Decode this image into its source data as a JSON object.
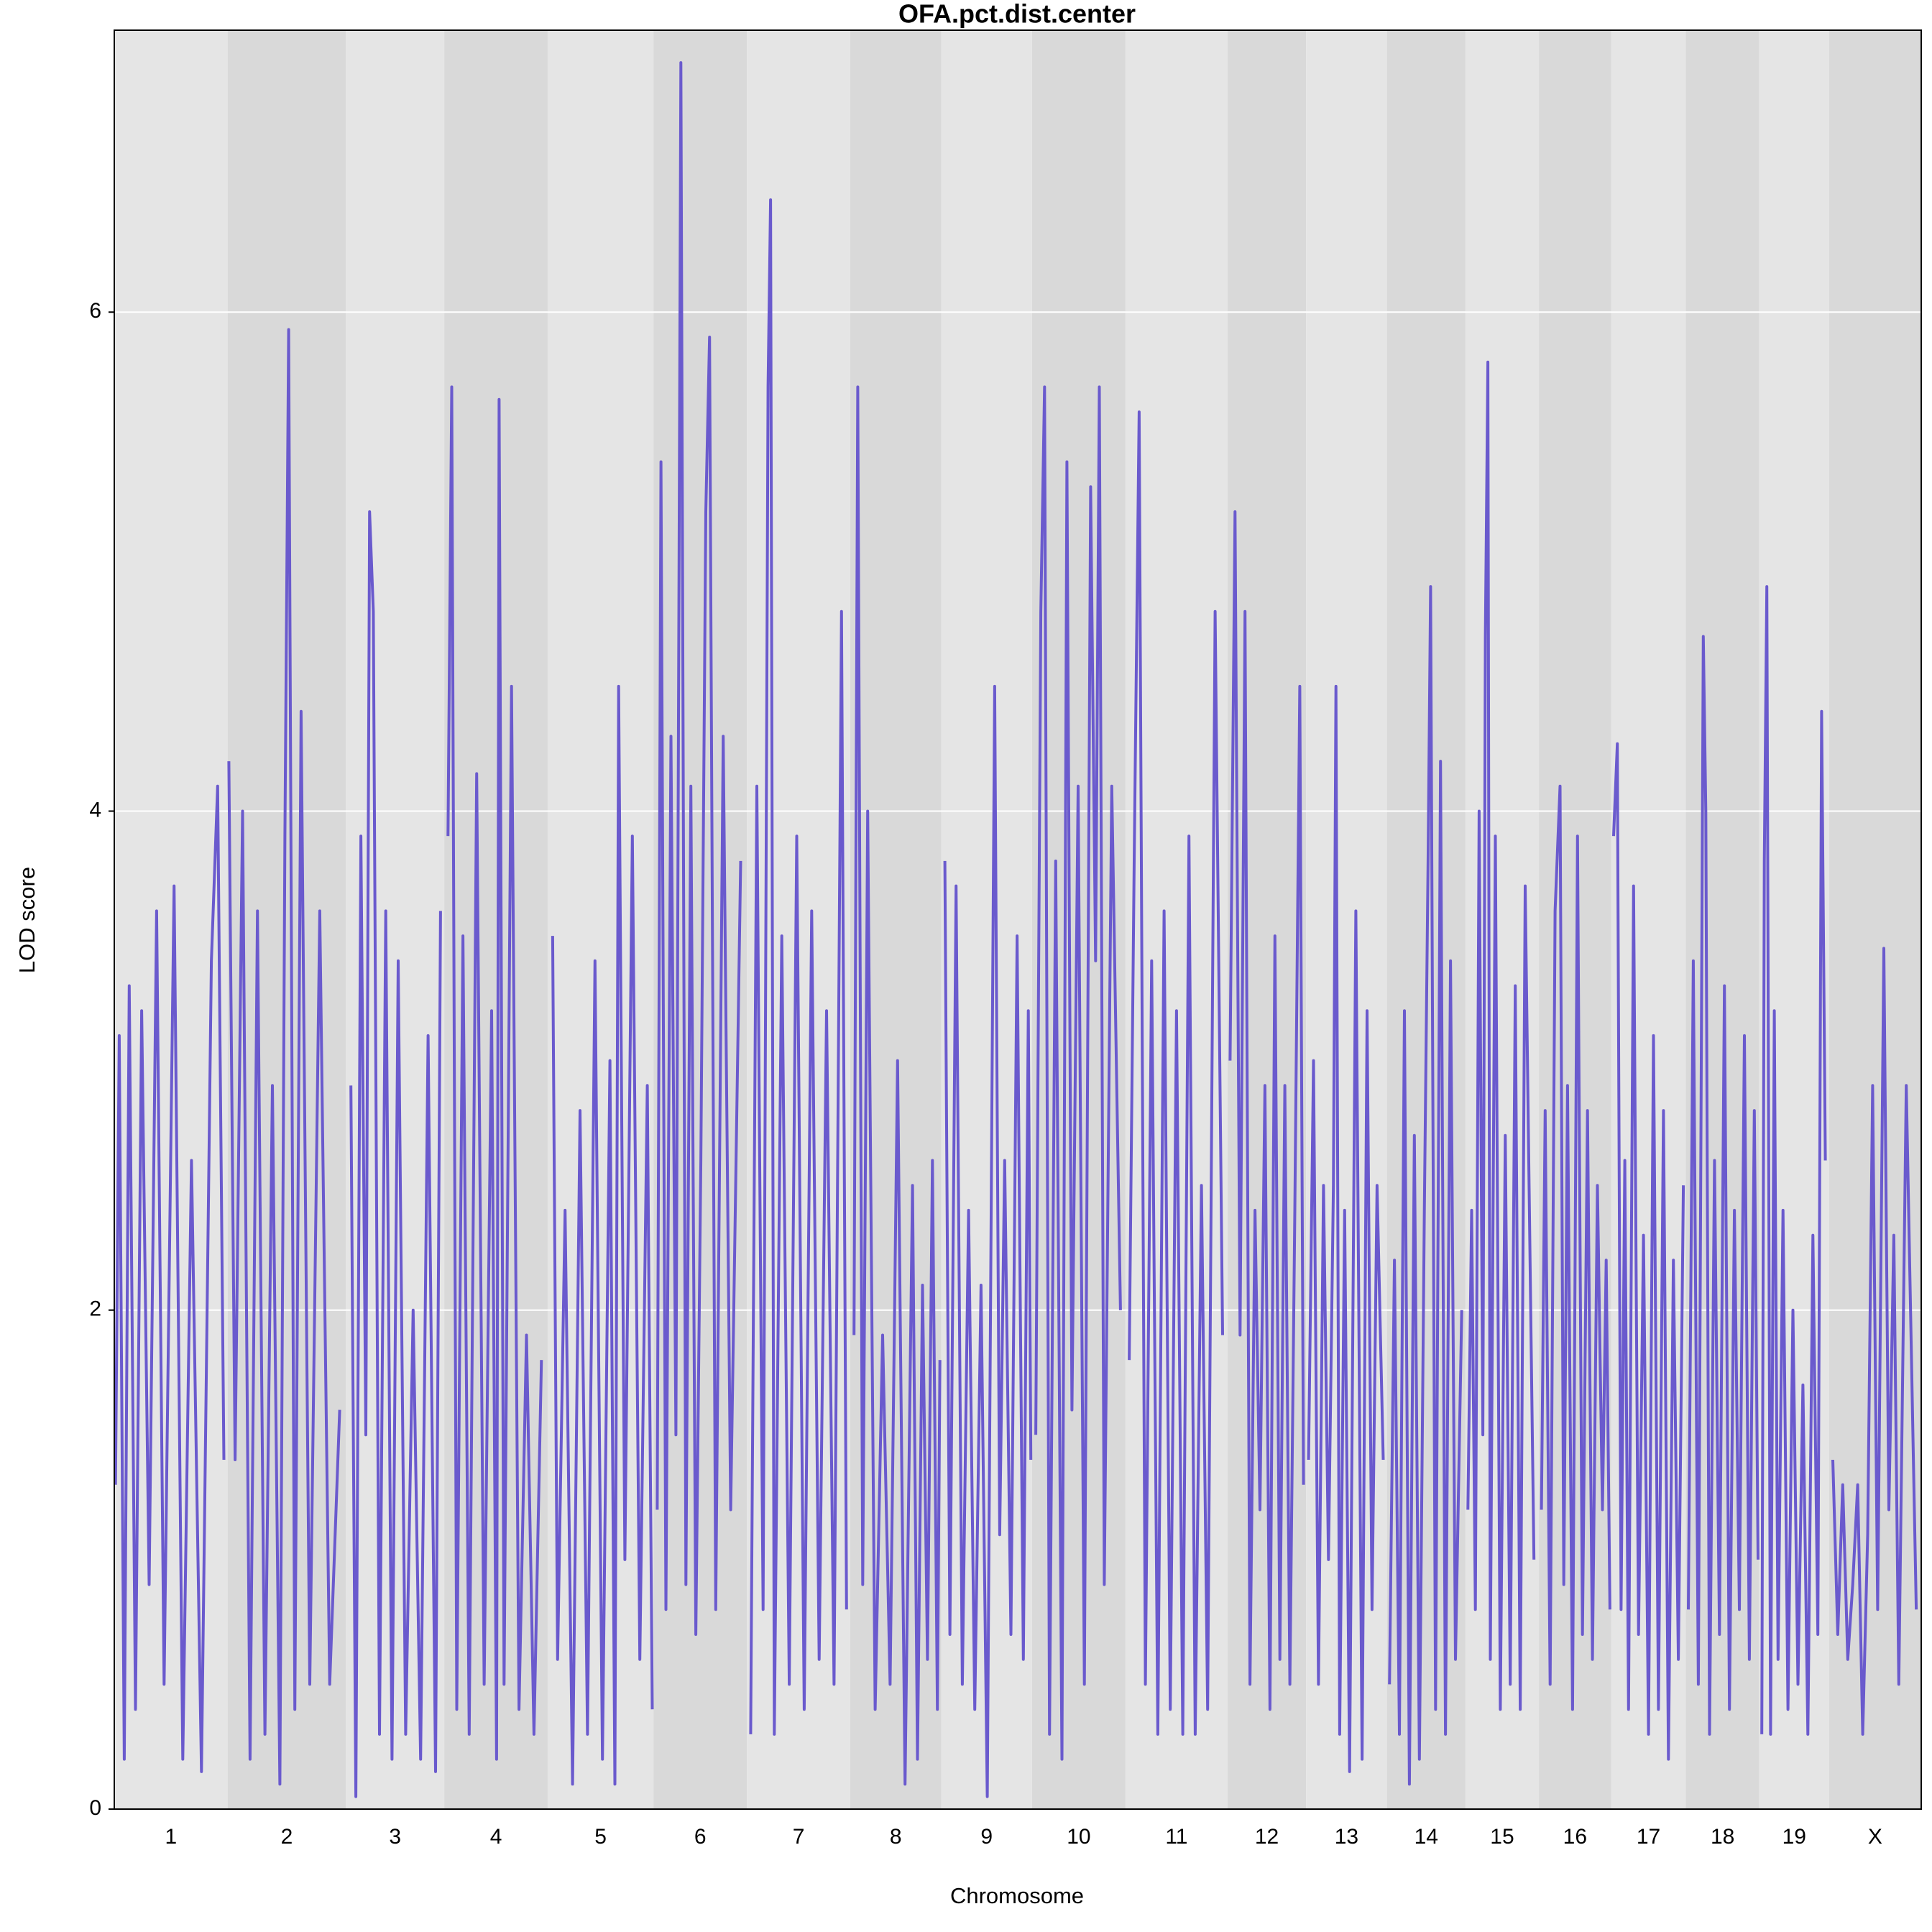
{
  "chart_data": {
    "type": "line",
    "title": "OFA.pct.dist.center",
    "xlabel": "Chromosome",
    "ylabel": "LOD score",
    "color": "#6a5acd",
    "band_colors": [
      "#e5e5e5",
      "#d9d9d9"
    ],
    "grid": true,
    "ylim": [
      0,
      7.13
    ],
    "yticks": [
      0,
      2,
      4,
      6
    ],
    "series": [
      {
        "name": "1",
        "xlim": [
          0,
          91
        ],
        "x": [
          1,
          4,
          8,
          12,
          17,
          22,
          28,
          34,
          40,
          48,
          55,
          62,
          70,
          78,
          83,
          88
        ],
        "values": [
          1.3,
          3.1,
          0.2,
          3.3,
          0.4,
          3.2,
          0.9,
          3.6,
          0.5,
          3.7,
          0.2,
          2.6,
          0.15,
          3.4,
          4.1,
          1.4
        ]
      },
      {
        "name": "2",
        "xlim": [
          0,
          95
        ],
        "x": [
          1,
          6,
          12,
          18,
          24,
          30,
          36,
          42,
          46,
          49,
          54,
          59,
          66,
          74,
          82,
          90
        ],
        "values": [
          4.2,
          1.4,
          4.0,
          0.2,
          3.6,
          0.3,
          2.9,
          0.1,
          3.9,
          5.93,
          0.4,
          4.4,
          0.5,
          3.6,
          0.5,
          1.6
        ]
      },
      {
        "name": "3",
        "xlim": [
          0,
          79
        ],
        "x": [
          4,
          8,
          12,
          16,
          19,
          22,
          27,
          32,
          37,
          42,
          48,
          54,
          60,
          66,
          72,
          76
        ],
        "values": [
          2.9,
          0.05,
          3.9,
          1.5,
          5.2,
          4.8,
          0.3,
          3.6,
          0.2,
          3.4,
          0.3,
          2.0,
          0.2,
          3.1,
          0.15,
          3.6
        ]
      },
      {
        "name": "4",
        "xlim": [
          0,
          83
        ],
        "x": [
          3,
          6,
          10,
          15,
          20,
          26,
          32,
          38,
          42,
          44,
          48,
          54,
          60,
          66,
          72,
          78
        ],
        "values": [
          3.9,
          5.7,
          0.4,
          3.5,
          0.3,
          4.15,
          0.5,
          3.2,
          0.2,
          5.65,
          0.5,
          4.5,
          0.4,
          1.9,
          0.3,
          1.8
        ]
      },
      {
        "name": "5",
        "xlim": [
          0,
          85
        ],
        "x": [
          4,
          8,
          14,
          20,
          26,
          32,
          38,
          44,
          50,
          54,
          57,
          62,
          68,
          74,
          80,
          84
        ],
        "values": [
          3.5,
          0.6,
          2.4,
          0.1,
          2.8,
          0.3,
          3.4,
          0.2,
          3.0,
          0.1,
          4.5,
          1.0,
          3.9,
          0.6,
          2.9,
          0.4
        ]
      },
      {
        "name": "6",
        "xlim": [
          0,
          75
        ],
        "x": [
          3,
          6,
          10,
          14,
          18,
          22,
          26,
          30,
          34,
          38,
          42,
          45,
          50,
          56,
          62,
          70
        ],
        "values": [
          1.2,
          5.4,
          0.8,
          4.3,
          1.5,
          7.0,
          0.9,
          4.1,
          0.7,
          2.6,
          5.2,
          5.9,
          0.8,
          4.3,
          1.2,
          3.8
        ]
      },
      {
        "name": "7",
        "xlim": [
          0,
          83
        ],
        "x": [
          3,
          8,
          13,
          17,
          19,
          22,
          28,
          34,
          40,
          46,
          52,
          58,
          64,
          70,
          76,
          80
        ],
        "values": [
          0.3,
          4.1,
          0.8,
          5.7,
          6.45,
          0.3,
          3.5,
          0.5,
          3.9,
          0.4,
          3.6,
          0.6,
          3.2,
          0.5,
          4.8,
          0.8
        ]
      },
      {
        "name": "8",
        "xlim": [
          0,
          73
        ],
        "x": [
          3,
          6,
          10,
          14,
          20,
          26,
          32,
          38,
          44,
          50,
          54,
          58,
          62,
          66,
          70,
          72
        ],
        "values": [
          1.9,
          5.7,
          0.9,
          4.0,
          0.4,
          1.9,
          0.5,
          3.0,
          0.1,
          2.5,
          0.2,
          2.1,
          0.6,
          2.6,
          0.4,
          1.8
        ]
      },
      {
        "name": "9",
        "xlim": [
          0,
          73
        ],
        "x": [
          3,
          7,
          12,
          17,
          22,
          27,
          32,
          37,
          43,
          47,
          51,
          56,
          61,
          66,
          70,
          72
        ],
        "values": [
          3.8,
          0.7,
          3.7,
          0.5,
          2.4,
          0.4,
          2.1,
          0.05,
          4.5,
          1.1,
          2.6,
          0.7,
          3.5,
          0.6,
          3.2,
          1.4
        ]
      },
      {
        "name": "10",
        "xlim": [
          0,
          75
        ],
        "x": [
          3,
          7,
          10,
          14,
          19,
          24,
          28,
          32,
          37,
          42,
          47,
          51,
          54,
          58,
          64,
          71
        ],
        "values": [
          1.5,
          4.8,
          5.7,
          0.3,
          3.8,
          0.2,
          5.4,
          1.6,
          4.1,
          0.5,
          5.3,
          3.4,
          5.7,
          0.9,
          4.1,
          2.0
        ]
      },
      {
        "name": "11",
        "xlim": [
          0,
          82
        ],
        "x": [
          3,
          7,
          11,
          16,
          21,
          26,
          31,
          36,
          41,
          46,
          51,
          56,
          61,
          66,
          72,
          78
        ],
        "values": [
          1.8,
          3.8,
          5.6,
          0.5,
          3.4,
          0.3,
          3.6,
          0.4,
          3.2,
          0.3,
          3.9,
          0.3,
          2.5,
          0.4,
          4.8,
          1.9
        ]
      },
      {
        "name": "12",
        "xlim": [
          0,
          63
        ],
        "x": [
          2,
          6,
          10,
          14,
          18,
          22,
          26,
          30,
          34,
          38,
          42,
          46,
          50,
          54,
          58,
          61
        ],
        "values": [
          3.0,
          5.2,
          1.9,
          4.8,
          0.5,
          2.4,
          1.2,
          2.9,
          0.4,
          3.5,
          0.6,
          2.9,
          0.5,
          2.4,
          4.5,
          1.3
        ]
      },
      {
        "name": "13",
        "xlim": [
          0,
          65
        ],
        "x": [
          2,
          6,
          10,
          14,
          18,
          22,
          24,
          27,
          31,
          35,
          40,
          45,
          49,
          53,
          57,
          62
        ],
        "values": [
          1.4,
          3.0,
          0.5,
          2.5,
          1.0,
          2.5,
          4.5,
          0.3,
          2.4,
          0.15,
          3.6,
          0.2,
          3.2,
          0.8,
          2.5,
          1.4
        ]
      },
      {
        "name": "14",
        "xlim": [
          0,
          63
        ],
        "x": [
          2,
          6,
          10,
          14,
          18,
          22,
          26,
          30,
          33,
          35,
          39,
          43,
          47,
          51,
          55,
          60
        ],
        "values": [
          0.5,
          2.2,
          0.3,
          3.2,
          0.1,
          2.7,
          0.2,
          2.4,
          3.8,
          4.9,
          0.4,
          4.2,
          0.3,
          3.4,
          0.6,
          2.0
        ]
      },
      {
        "name": "15",
        "xlim": [
          0,
          59
        ],
        "x": [
          2,
          5,
          8,
          11,
          14,
          16,
          18,
          20,
          24,
          28,
          32,
          36,
          40,
          44,
          48,
          55
        ],
        "values": [
          1.2,
          2.4,
          0.8,
          4.0,
          1.5,
          4.7,
          5.8,
          0.6,
          3.9,
          0.4,
          2.7,
          0.5,
          3.3,
          0.4,
          3.7,
          1.0
        ]
      },
      {
        "name": "16",
        "xlim": [
          0,
          58
        ],
        "x": [
          2,
          5,
          9,
          13,
          17,
          20,
          23,
          27,
          31,
          35,
          39,
          43,
          47,
          51,
          54,
          57
        ],
        "values": [
          1.2,
          2.8,
          0.5,
          3.6,
          4.1,
          0.9,
          2.9,
          0.4,
          3.9,
          0.7,
          2.8,
          0.6,
          2.5,
          1.2,
          2.2,
          0.8
        ]
      },
      {
        "name": "17",
        "xlim": [
          0,
          60
        ],
        "x": [
          2,
          5,
          8,
          11,
          14,
          18,
          22,
          26,
          30,
          34,
          38,
          42,
          46,
          50,
          54,
          58
        ],
        "values": [
          3.9,
          4.27,
          0.8,
          2.6,
          0.4,
          3.7,
          0.7,
          2.3,
          0.3,
          3.1,
          0.4,
          2.8,
          0.2,
          2.2,
          0.6,
          2.5
        ]
      },
      {
        "name": "18",
        "xlim": [
          0,
          59
        ],
        "x": [
          2,
          6,
          10,
          14,
          16,
          19,
          23,
          27,
          31,
          35,
          39,
          43,
          47,
          51,
          55,
          58
        ],
        "values": [
          0.8,
          3.4,
          0.5,
          4.7,
          4.0,
          0.3,
          2.6,
          0.7,
          3.3,
          0.4,
          2.4,
          0.8,
          3.1,
          0.6,
          2.8,
          1.0
        ]
      },
      {
        "name": "19",
        "xlim": [
          0,
          56
        ],
        "x": [
          2,
          4,
          6,
          9,
          12,
          15,
          19,
          23,
          27,
          31,
          35,
          39,
          43,
          47,
          50,
          53
        ],
        "values": [
          0.3,
          3.8,
          4.9,
          0.3,
          3.2,
          0.6,
          2.4,
          0.4,
          2.0,
          0.5,
          1.7,
          0.3,
          2.3,
          0.7,
          4.4,
          2.6
        ]
      },
      {
        "name": "X",
        "xlim": [
          0,
          74
        ],
        "x": [
          3,
          7,
          11,
          15,
          19,
          23,
          27,
          31,
          35,
          39,
          44,
          48,
          52,
          56,
          62,
          70
        ],
        "values": [
          1.4,
          0.7,
          1.3,
          0.6,
          0.9,
          1.3,
          0.3,
          1.1,
          2.9,
          0.8,
          3.45,
          1.2,
          2.3,
          0.5,
          2.9,
          0.8
        ]
      }
    ]
  }
}
